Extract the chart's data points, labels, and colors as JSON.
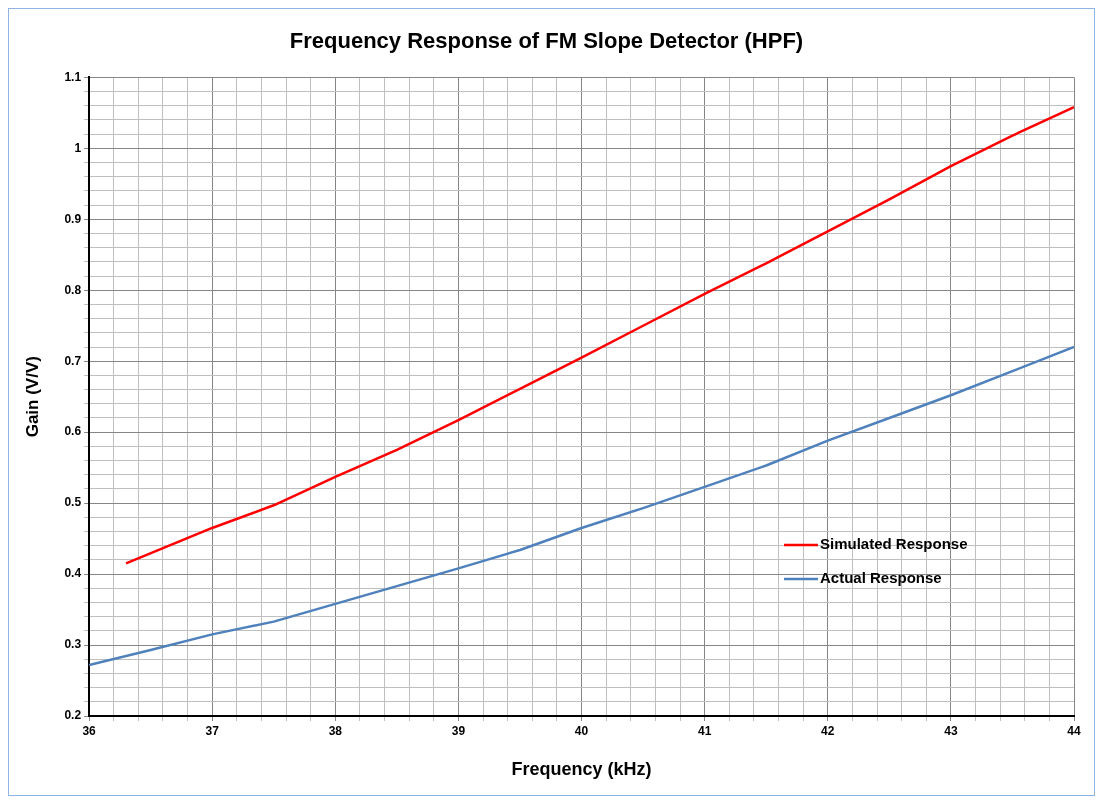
{
  "chart_data": {
    "type": "line",
    "title": "Frequency Response of FM Slope Detector (HPF)",
    "xlabel": "Frequency (kHz)",
    "ylabel": "Gain (V/V)",
    "xlim": [
      36,
      44
    ],
    "xticks": [
      36,
      {
        "value": 36.2,
        "label": null
      },
      {
        "value": 36.4,
        "label": null
      },
      {
        "value": 36.6,
        "label": null
      },
      {
        "value": 36.8,
        "label": null
      },
      37,
      {
        "value": 37.2,
        "label": null
      },
      {
        "value": 37.4,
        "label": null
      },
      {
        "value": 37.6,
        "label": null
      },
      {
        "value": 37.8,
        "label": null
      },
      38,
      {
        "value": 38.2,
        "label": null
      },
      {
        "value": 38.4,
        "label": null
      },
      {
        "value": 38.6,
        "label": null
      },
      {
        "value": 38.8,
        "label": null
      },
      39,
      {
        "value": 39.2,
        "label": null
      },
      {
        "value": 39.4,
        "label": null
      },
      {
        "value": 39.6,
        "label": null
      },
      {
        "value": 39.8,
        "label": null
      },
      40,
      {
        "value": 40.2,
        "label": null
      },
      {
        "value": 40.4,
        "label": null
      },
      {
        "value": 40.6,
        "label": null
      },
      {
        "value": 40.8,
        "label": null
      },
      41,
      {
        "value": 41.2,
        "label": null
      },
      {
        "value": 41.4,
        "label": null
      },
      {
        "value": 41.6,
        "label": null
      },
      {
        "value": 41.8,
        "label": null
      },
      42,
      {
        "value": 42.2,
        "label": null
      },
      {
        "value": 42.4,
        "label": null
      },
      {
        "value": 42.6,
        "label": null
      },
      {
        "value": 42.8,
        "label": null
      },
      43,
      {
        "value": 43.2,
        "label": null
      },
      {
        "value": 43.4,
        "label": null
      },
      {
        "value": 43.6,
        "label": null
      },
      {
        "value": 43.8,
        "label": null
      },
      44
    ],
    "ylim": [
      0.2,
      1.1
    ],
    "yticks": [
      0.2,
      {
        "value": 0.22,
        "label": null
      },
      {
        "value": 0.24,
        "label": null
      },
      {
        "value": 0.26,
        "label": null
      },
      {
        "value": 0.28,
        "label": null
      },
      0.3,
      {
        "value": 0.32,
        "label": null
      },
      {
        "value": 0.34,
        "label": null
      },
      {
        "value": 0.36,
        "label": null
      },
      {
        "value": 0.38,
        "label": null
      },
      0.4,
      {
        "value": 0.42,
        "label": null
      },
      {
        "value": 0.44,
        "label": null
      },
      {
        "value": 0.46,
        "label": null
      },
      {
        "value": 0.48,
        "label": null
      },
      0.5,
      {
        "value": 0.52,
        "label": null
      },
      {
        "value": 0.54,
        "label": null
      },
      {
        "value": 0.56,
        "label": null
      },
      {
        "value": 0.58,
        "label": null
      },
      0.6,
      {
        "value": 0.62,
        "label": null
      },
      {
        "value": 0.64,
        "label": null
      },
      {
        "value": 0.66,
        "label": null
      },
      {
        "value": 0.68,
        "label": null
      },
      0.7,
      {
        "value": 0.72,
        "label": null
      },
      {
        "value": 0.74,
        "label": null
      },
      {
        "value": 0.76,
        "label": null
      },
      {
        "value": 0.78,
        "label": null
      },
      0.8,
      {
        "value": 0.82,
        "label": null
      },
      {
        "value": 0.84,
        "label": null
      },
      {
        "value": 0.86,
        "label": null
      },
      {
        "value": 0.88,
        "label": null
      },
      0.9,
      {
        "value": 0.92,
        "label": null
      },
      {
        "value": 0.94,
        "label": null
      },
      {
        "value": 0.96,
        "label": null
      },
      {
        "value": 0.98,
        "label": null
      },
      1,
      {
        "value": 1.02,
        "label": null
      },
      {
        "value": 1.04,
        "label": null
      },
      {
        "value": 1.06,
        "label": null
      },
      {
        "value": 1.08,
        "label": null
      },
      1.1
    ],
    "grid": true,
    "legend": "bottom right",
    "marker": "none",
    "line_style": "solid",
    "series": [
      {
        "name": "Simulated Response",
        "color": "#ff0000",
        "x": [
          36.3,
          37,
          37.5,
          38,
          38.5,
          39,
          39.5,
          40,
          40.5,
          41,
          41.5,
          42,
          42.5,
          43,
          43.5,
          44
        ],
        "values": [
          0.415,
          0.465,
          0.497,
          0.537,
          0.575,
          0.617,
          0.661,
          0.705,
          0.75,
          0.795,
          0.838,
          0.883,
          0.928,
          0.975,
          1.018,
          1.058
        ]
      },
      {
        "name": "Actual Response",
        "color": "#4f81bd",
        "x": [
          36,
          36.5,
          37,
          37.5,
          38,
          38.5,
          39,
          39.5,
          40,
          40.5,
          41,
          41.5,
          42,
          42.5,
          43,
          43.5,
          44
        ],
        "values": [
          0.272,
          0.293,
          0.315,
          0.333,
          0.358,
          0.383,
          0.408,
          0.434,
          0.465,
          0.493,
          0.523,
          0.553,
          0.588,
          0.62,
          0.652,
          0.686,
          0.72
        ]
      }
    ]
  }
}
